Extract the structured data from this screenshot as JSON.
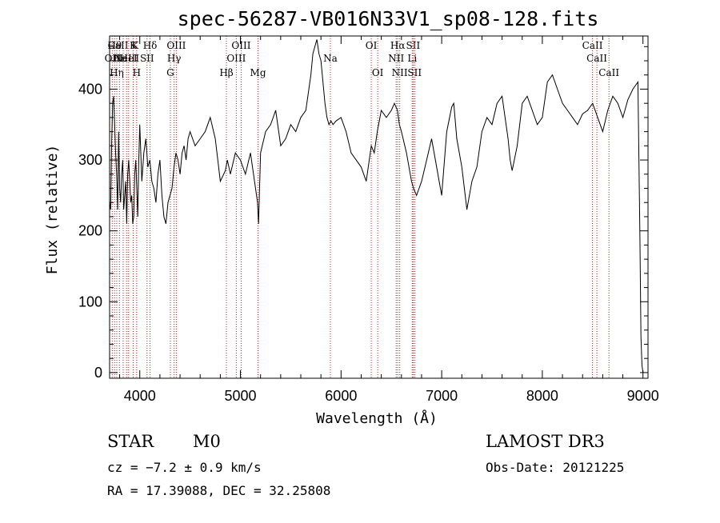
{
  "chart_data": {
    "type": "line",
    "title": "spec-56287-VB016N33V1_sp08-128.fits",
    "xlabel": "Wavelength (Å)",
    "ylabel": "Flux (relative)",
    "xlim": [
      3700,
      9050
    ],
    "ylim": [
      -8,
      475
    ],
    "x_ticks": [
      4000,
      5000,
      6000,
      7000,
      8000,
      9000
    ],
    "y_ticks": [
      0,
      100,
      200,
      300,
      400
    ],
    "grid": false,
    "line_color": "#000000",
    "marker_color": "#b22222",
    "series": [
      {
        "x": [
          3700,
          3710,
          3720,
          3730,
          3740,
          3750,
          3760,
          3770,
          3780,
          3790,
          3800,
          3810,
          3820,
          3830,
          3840,
          3850,
          3860,
          3870,
          3880,
          3890,
          3900,
          3910,
          3920,
          3930,
          3940,
          3950,
          3960,
          3970,
          3980,
          3990,
          4000,
          4020,
          4040,
          4060,
          4080,
          4100,
          4120,
          4140,
          4160,
          4180,
          4200,
          4220,
          4240,
          4260,
          4280,
          4300,
          4320,
          4340,
          4360,
          4380,
          4400,
          4420,
          4440,
          4460,
          4480,
          4500,
          4550,
          4600,
          4650,
          4700,
          4750,
          4800,
          4850,
          4870,
          4900,
          4950,
          5000,
          5050,
          5100,
          5150,
          5170,
          5180,
          5200,
          5250,
          5300,
          5350,
          5400,
          5450,
          5500,
          5550,
          5600,
          5650,
          5700,
          5720,
          5740,
          5760,
          5780,
          5800,
          5820,
          5840,
          5860,
          5880,
          5900,
          5920,
          5950,
          6000,
          6050,
          6100,
          6150,
          6200,
          6250,
          6300,
          6330,
          6360,
          6400,
          6450,
          6500,
          6530,
          6560,
          6580,
          6600,
          6650,
          6700,
          6720,
          6750,
          6800,
          6850,
          6900,
          6950,
          7000,
          7050,
          7100,
          7120,
          7150,
          7200,
          7250,
          7300,
          7350,
          7400,
          7450,
          7500,
          7550,
          7600,
          7640,
          7660,
          7680,
          7700,
          7750,
          7800,
          7850,
          7900,
          7950,
          8000,
          8050,
          8100,
          8150,
          8200,
          8250,
          8300,
          8350,
          8400,
          8450,
          8500,
          8550,
          8600,
          8650,
          8700,
          8750,
          8800,
          8850,
          8900,
          8950,
          8970,
          8980,
          8990,
          9000
        ],
        "y": [
          240,
          230,
          320,
          380,
          390,
          350,
          310,
          280,
          230,
          340,
          260,
          240,
          280,
          300,
          230,
          250,
          270,
          210,
          280,
          300,
          270,
          240,
          250,
          210,
          220,
          280,
          300,
          260,
          220,
          300,
          350,
          270,
          310,
          330,
          290,
          300,
          270,
          260,
          240,
          280,
          300,
          250,
          220,
          210,
          240,
          250,
          260,
          290,
          310,
          300,
          280,
          310,
          320,
          300,
          330,
          340,
          320,
          330,
          340,
          360,
          330,
          270,
          285,
          300,
          280,
          310,
          300,
          280,
          310,
          260,
          240,
          210,
          310,
          340,
          350,
          370,
          320,
          330,
          350,
          340,
          360,
          370,
          420,
          450,
          460,
          470,
          450,
          440,
          410,
          380,
          360,
          350,
          355,
          350,
          355,
          360,
          340,
          310,
          300,
          290,
          270,
          320,
          310,
          340,
          370,
          360,
          370,
          380,
          370,
          350,
          340,
          310,
          270,
          260,
          250,
          270,
          300,
          330,
          290,
          250,
          340,
          375,
          380,
          330,
          290,
          230,
          270,
          290,
          340,
          360,
          350,
          380,
          390,
          350,
          330,
          300,
          285,
          320,
          380,
          390,
          370,
          350,
          360,
          410,
          420,
          400,
          380,
          370,
          360,
          350,
          365,
          370,
          380,
          360,
          340,
          370,
          390,
          380,
          360,
          385,
          400,
          410,
          190,
          50,
          10,
          0
        ]
      }
    ],
    "markers": [
      {
        "x": 3726,
        "label": "OII",
        "row": 2
      },
      {
        "x": 3750,
        "label": "Hθ",
        "row": 1
      },
      {
        "x": 3771,
        "label": "Hη",
        "row": 3
      },
      {
        "x": 3798,
        "label": "Hε",
        "row": 2
      },
      {
        "x": 3835,
        "label": "CaII K",
        "row": 1
      },
      {
        "x": 3869,
        "label": "NeIII",
        "row": 2
      },
      {
        "x": 3889,
        "label": "HeI",
        "row": 2
      },
      {
        "x": 3934,
        "label": "K",
        "row": 1
      },
      {
        "x": 3969,
        "label": "H",
        "row": 3
      },
      {
        "x": 4072,
        "label": "SII",
        "row": 2
      },
      {
        "x": 4102,
        "label": "Hδ",
        "row": 1
      },
      {
        "x": 4304,
        "label": "G",
        "row": 3
      },
      {
        "x": 4341,
        "label": "Hγ",
        "row": 2
      },
      {
        "x": 4363,
        "label": "OIII",
        "row": 1
      },
      {
        "x": 4861,
        "label": "Hβ",
        "row": 3
      },
      {
        "x": 4959,
        "label": "OIII",
        "row": 2
      },
      {
        "x": 5007,
        "label": "OIII",
        "row": 1
      },
      {
        "x": 5175,
        "label": "Mg",
        "row": 3
      },
      {
        "x": 5894,
        "label": "Na",
        "row": 2
      },
      {
        "x": 6300,
        "label": "OI",
        "row": 1
      },
      {
        "x": 6364,
        "label": "OI",
        "row": 3
      },
      {
        "x": 6548,
        "label": "NII",
        "row": 2
      },
      {
        "x": 6563,
        "label": "Hα",
        "row": 1
      },
      {
        "x": 6583,
        "label": "NII",
        "row": 3
      },
      {
        "x": 6707,
        "label": "Li",
        "row": 2
      },
      {
        "x": 6716,
        "label": "SII",
        "row": 1
      },
      {
        "x": 6731,
        "label": "SII",
        "row": 3
      },
      {
        "x": 8498,
        "label": "CaII",
        "row": 1
      },
      {
        "x": 8542,
        "label": "CaII",
        "row": 2
      },
      {
        "x": 8662,
        "label": "CaII",
        "row": 3
      }
    ]
  },
  "info": {
    "class": "STAR",
    "subclass": "M0",
    "survey": "LAMOST DR3",
    "cz": "cz = −7.2 ± 0.9 km/s",
    "obs_date": "Obs-Date: 20121225",
    "coords": "RA =  17.39088, DEC =  32.25808"
  }
}
